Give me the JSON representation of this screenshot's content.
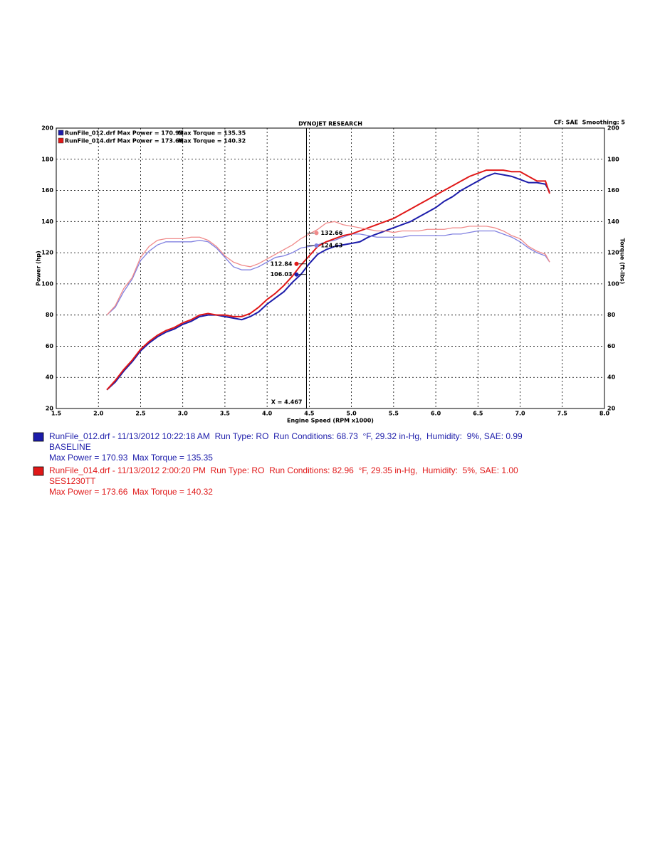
{
  "chart_data": {
    "type": "line",
    "title": "DYNOJET RESEARCH",
    "subtitle": "CF: SAE  Smoothing: 5",
    "x_label": "Engine Speed (RPM x1000)",
    "y_label": "Power (hp)",
    "y2_label": "Torque (ft-lbs)",
    "x": [
      2.1,
      2.2,
      2.3,
      2.4,
      2.5,
      2.6,
      2.7,
      2.8,
      2.9,
      3.0,
      3.1,
      3.2,
      3.3,
      3.4,
      3.5,
      3.6,
      3.7,
      3.8,
      3.9,
      4.0,
      4.1,
      4.2,
      4.3,
      4.4,
      4.5,
      4.6,
      4.7,
      4.8,
      4.9,
      5.0,
      5.1,
      5.2,
      5.3,
      5.4,
      5.5,
      5.6,
      5.7,
      5.8,
      5.9,
      6.0,
      6.1,
      6.2,
      6.3,
      6.4,
      6.5,
      6.6,
      6.7,
      6.8,
      6.9,
      7.0,
      7.1,
      7.2,
      7.3,
      7.35
    ],
    "xlim": [
      1.5,
      8.0
    ],
    "xticks": [
      1.5,
      {
        "value": 2,
        "label": "2.0"
      },
      2.5,
      {
        "value": 3,
        "label": "3.0"
      },
      3.5,
      {
        "value": 4,
        "label": "4.0"
      },
      4.5,
      {
        "value": 5,
        "label": "5.0"
      },
      5.5,
      {
        "value": 6,
        "label": "6.0"
      },
      6.5,
      {
        "value": 7,
        "label": "7.0"
      },
      7.5,
      {
        "value": 8,
        "label": "8.0"
      }
    ],
    "ylim": [
      20,
      200
    ],
    "yticks": [
      20,
      40,
      60,
      80,
      100,
      120,
      140,
      160,
      180,
      200
    ],
    "y2lim": [
      20,
      200
    ],
    "y2ticks": [
      20,
      40,
      60,
      80,
      100,
      120,
      140,
      160,
      180,
      200
    ],
    "grid": true,
    "series": [
      {
        "name": "RunFile_012.drf Max Power = 170.93",
        "color": "#1c1caa",
        "values": [
          32,
          37,
          44,
          50,
          57,
          62,
          66,
          69,
          71,
          74,
          76,
          79,
          80,
          80,
          79,
          78,
          77,
          79,
          82,
          87,
          91,
          95,
          101,
          106,
          113,
          119,
          122,
          124,
          125,
          126,
          127,
          130,
          132,
          134,
          136,
          138,
          140,
          143,
          146,
          149,
          153,
          156,
          160,
          163,
          166,
          169,
          171,
          170,
          169,
          167,
          165,
          165,
          164,
          159
        ]
      },
      {
        "name": "Max Torque = 135.35",
        "color": "#8080e0",
        "axis": "y2",
        "values": [
          80,
          85,
          95,
          103,
          115,
          121,
          125,
          127,
          127,
          127,
          127,
          128,
          127,
          123,
          117,
          111,
          109,
          109,
          111,
          114,
          117,
          118,
          120,
          123,
          124,
          125,
          127,
          128,
          130,
          132,
          132,
          131,
          130,
          130,
          130,
          130,
          131,
          131,
          131,
          131,
          131,
          132,
          132,
          133,
          134,
          134,
          134,
          132,
          130,
          127,
          123,
          120,
          118,
          114
        ]
      },
      {
        "name": "RunFile_014.drf Max Power = 173.66",
        "color": "#e01818",
        "values": [
          32,
          38,
          45,
          51,
          58,
          63,
          67,
          70,
          72,
          75,
          77,
          80,
          81,
          80,
          80,
          79,
          79,
          81,
          85,
          90,
          94,
          99,
          105,
          112,
          118,
          124,
          127,
          129,
          131,
          132,
          134,
          136,
          138,
          140,
          142,
          145,
          148,
          151,
          154,
          157,
          160,
          163,
          166,
          169,
          171,
          173,
          173,
          173,
          172,
          172,
          169,
          166,
          166,
          158
        ]
      },
      {
        "name": "Max Torque = 140.32",
        "color": "#f08a8a",
        "axis": "y2",
        "values": [
          80,
          86,
          97,
          104,
          117,
          124,
          128,
          129,
          129,
          129,
          130,
          130,
          128,
          124,
          118,
          114,
          112,
          111,
          113,
          116,
          119,
          122,
          125,
          129,
          132,
          135,
          139,
          140,
          138,
          137,
          136,
          135,
          134,
          134,
          133,
          134,
          134,
          134,
          135,
          135,
          135,
          136,
          136,
          137,
          137,
          137,
          136,
          134,
          131,
          129,
          124,
          121,
          119,
          114
        ]
      }
    ],
    "cursor": {
      "x": 4.467,
      "label": "X = 4.467"
    },
    "cursor_values": [
      {
        "value": 132.66,
        "color": "#f08a8a",
        "axis": "y2"
      },
      {
        "value": 124.63,
        "color": "#8080e0",
        "axis": "y2"
      },
      {
        "value": 112.84,
        "color": "#e01818"
      },
      {
        "value": 106.03,
        "color": "#1c1caa"
      }
    ]
  },
  "runs": [
    {
      "color": "#1c1caa",
      "header": "RunFile_012.drf - 11/13/2012 10:22:18 AM  Run Type: RO  Run Conditions: 68.73  °F, 29.32 in-Hg,  Humidity:  9%, SAE: 0.99",
      "label": "BASELINE",
      "summary": "Max Power = 170.93  Max Torque = 135.35"
    },
    {
      "color": "#e01818",
      "header": "RunFile_014.drf - 11/13/2012 2:00:20 PM  Run Type: RO  Run Conditions: 82.96  °F, 29.35 in-Hg,  Humidity:  5%, SAE: 1.00",
      "label": "SES1230TT",
      "summary": "Max Power = 173.66  Max Torque = 140.32"
    }
  ]
}
